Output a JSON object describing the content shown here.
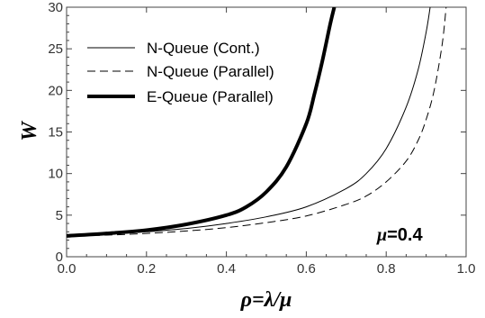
{
  "chart_data": {
    "type": "line",
    "xlabel": "ρ=λ/μ",
    "ylabel": "W",
    "xlim": [
      0,
      1
    ],
    "ylim": [
      0,
      30
    ],
    "xticks": [
      "0.0",
      "0.2",
      "0.4",
      "0.6",
      "0.8",
      "1.0"
    ],
    "yticks": [
      "0",
      "5",
      "10",
      "15",
      "20",
      "25",
      "30"
    ],
    "legend_position": "top-left",
    "annotation": {
      "symbol": "μ",
      "text": "=0.4"
    },
    "series": [
      {
        "name": "N-Queue (Cont.)",
        "style": "thin-solid",
        "x": [
          0.0,
          0.1,
          0.2,
          0.3,
          0.4,
          0.5,
          0.6,
          0.7,
          0.75,
          0.8,
          0.85,
          0.88,
          0.9,
          0.91
        ],
        "y": [
          2.5,
          2.7,
          3.0,
          3.4,
          4.0,
          4.8,
          6.0,
          8.2,
          10.0,
          13.0,
          18.0,
          22.5,
          27.0,
          30.0
        ]
      },
      {
        "name": "N-Queue (Parallel)",
        "style": "dashed",
        "x": [
          0.0,
          0.1,
          0.2,
          0.3,
          0.4,
          0.5,
          0.6,
          0.7,
          0.75,
          0.8,
          0.85,
          0.88,
          0.9,
          0.92,
          0.94,
          0.95
        ],
        "y": [
          2.5,
          2.6,
          2.8,
          3.1,
          3.5,
          4.1,
          4.9,
          6.3,
          7.3,
          9.0,
          11.5,
          14.0,
          16.5,
          20.0,
          25.5,
          30.0
        ]
      },
      {
        "name": "E-Queue (Parallel)",
        "style": "thick-solid",
        "x": [
          0.0,
          0.1,
          0.2,
          0.3,
          0.4,
          0.45,
          0.5,
          0.55,
          0.6,
          0.62,
          0.64,
          0.66,
          0.67
        ],
        "y": [
          2.5,
          2.8,
          3.2,
          3.9,
          5.0,
          6.0,
          7.8,
          10.8,
          16.0,
          19.5,
          23.5,
          28.0,
          30.0
        ]
      }
    ]
  }
}
